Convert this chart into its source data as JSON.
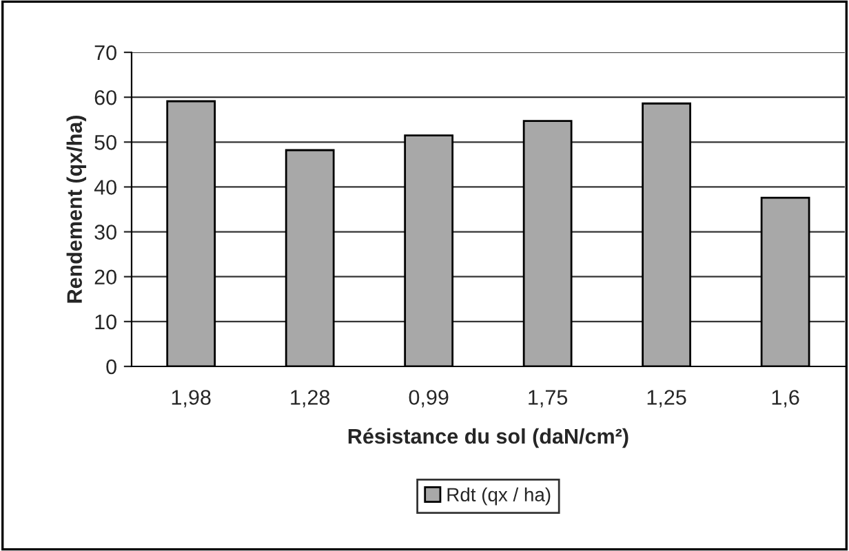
{
  "chart_data": {
    "type": "bar",
    "xlabel": "Résistance du sol (daN/cm²)",
    "ylabel": "Rendement (qx/ha)",
    "categories": [
      "1,98",
      "1,28",
      "0,99",
      "1,75",
      "1,25",
      "1,6"
    ],
    "series": [
      {
        "name": "Rdt (qx / ha)",
        "color": "#a8a8a8",
        "values": [
          59.1,
          48.2,
          51.5,
          54.7,
          58.6,
          37.6
        ]
      }
    ],
    "ylim": [
      0,
      70
    ],
    "yticks": [
      0,
      10,
      20,
      30,
      40,
      50,
      60,
      70
    ],
    "grid": "y",
    "legend": "bottom"
  }
}
